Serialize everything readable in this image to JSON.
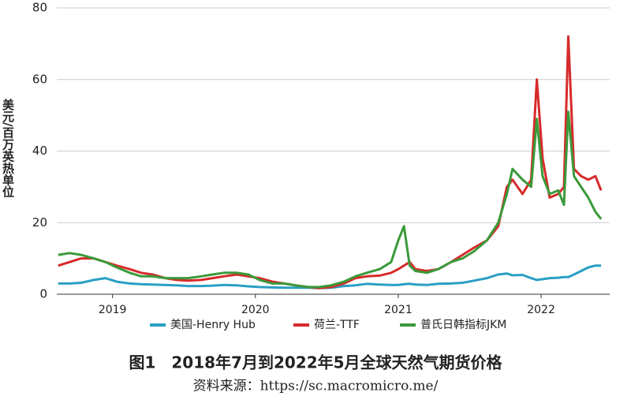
{
  "chart_data": {
    "type": "line",
    "y_label": "美元/百万英热单位",
    "caption": "图1　2018年7月到2022年5月全球天然气期货价格",
    "source": "资料来源：https://sc.macromicro.me/",
    "x": [
      2018.62,
      2018.7,
      2018.78,
      2018.87,
      2018.95,
      2019.03,
      2019.12,
      2019.2,
      2019.28,
      2019.37,
      2019.45,
      2019.53,
      2019.62,
      2019.7,
      2019.78,
      2019.87,
      2019.95,
      2020.03,
      2020.12,
      2020.2,
      2020.28,
      2020.37,
      2020.45,
      2020.53,
      2020.62,
      2020.7,
      2020.78,
      2020.87,
      2020.95,
      2021.0,
      2021.04,
      2021.08,
      2021.12,
      2021.2,
      2021.28,
      2021.37,
      2021.45,
      2021.53,
      2021.62,
      2021.7,
      2021.76,
      2021.8,
      2021.87,
      2021.93,
      2021.97,
      2022.01,
      2022.06,
      2022.12,
      2022.16,
      2022.19,
      2022.23,
      2022.28,
      2022.33,
      2022.38,
      2022.42
    ],
    "series": [
      {
        "name": "美国-Henry Hub",
        "color": "#2a9fc4",
        "values": [
          3,
          3,
          3.2,
          4,
          4.5,
          3.5,
          3,
          2.8,
          2.7,
          2.6,
          2.5,
          2.3,
          2.3,
          2.4,
          2.6,
          2.5,
          2.2,
          2,
          1.9,
          1.8,
          1.8,
          1.8,
          1.7,
          1.8,
          2.3,
          2.5,
          2.9,
          2.7,
          2.6,
          2.6,
          2.8,
          2.9,
          2.7,
          2.6,
          2.9,
          3,
          3.2,
          3.8,
          4.5,
          5.5,
          5.8,
          5.3,
          5.4,
          4.5,
          4,
          4.2,
          4.5,
          4.6,
          4.8,
          4.8,
          5.5,
          6.5,
          7.5,
          8,
          8
        ]
      },
      {
        "name": "荷兰-TTF",
        "color": "#d62a2a",
        "values": [
          8,
          9,
          10,
          10,
          9,
          8,
          7,
          6,
          5.5,
          4.5,
          4,
          3.8,
          4,
          4.5,
          5,
          5.5,
          5,
          4.5,
          3.5,
          3,
          2.5,
          2,
          1.7,
          2,
          3,
          4.5,
          5,
          5.2,
          6,
          7,
          8,
          9,
          7,
          6.5,
          7,
          9,
          11,
          13,
          15,
          19,
          30,
          32,
          28,
          32,
          60,
          38,
          27,
          28,
          30,
          72,
          35,
          33,
          32,
          33,
          29
        ]
      },
      {
        "name": "普氏日韩指标JKM",
        "color": "#3a9a3a",
        "values": [
          11,
          11.5,
          11,
          10,
          9,
          7.5,
          6,
          5,
          5,
          4.5,
          4.5,
          4.5,
          5,
          5.5,
          6,
          6,
          5.5,
          4,
          3,
          3,
          2.5,
          2,
          2,
          2.5,
          3.5,
          5,
          6,
          7,
          9,
          15,
          19,
          8,
          6.5,
          6,
          7,
          9,
          10,
          12,
          15,
          20,
          28,
          35,
          32,
          30,
          49,
          33,
          28,
          29,
          25,
          51,
          33,
          30,
          27,
          23,
          21
        ]
      }
    ],
    "xlim": [
      2018.61,
      2022.48
    ],
    "xticks": [
      2019,
      2020,
      2021,
      2022
    ],
    "ylim": [
      0,
      80
    ],
    "yticks": [
      0,
      20,
      40,
      60,
      80
    ],
    "grid": true
  }
}
